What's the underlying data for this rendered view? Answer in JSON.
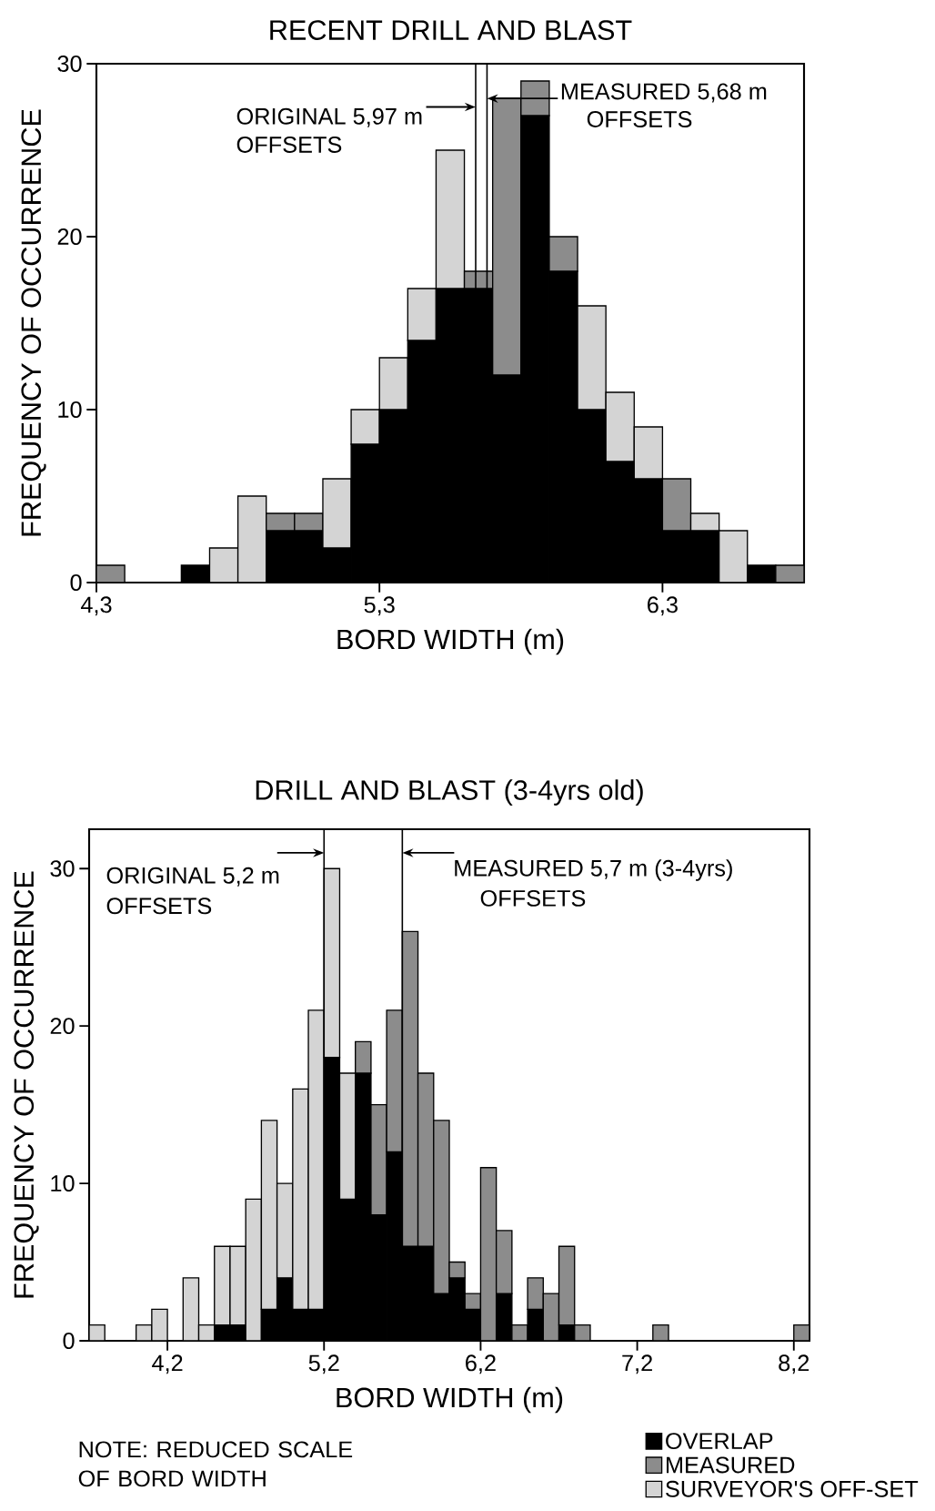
{
  "chart_data": [
    {
      "type": "bar",
      "title": "RECENT DRILL AND BLAST",
      "xlabel": "BORD WIDTH (m)",
      "ylabel": "FREQUENCY OF OCCURRENCE",
      "stacked": true,
      "x": [
        4.35,
        4.65,
        4.75,
        4.85,
        4.95,
        5.05,
        5.15,
        5.25,
        5.35,
        5.45,
        5.55,
        5.65,
        5.75,
        5.85,
        5.95,
        6.05,
        6.15,
        6.25,
        6.35,
        6.45,
        6.55,
        6.65,
        6.75
      ],
      "series": [
        {
          "color": "#000000",
          "values": [
            null,
            1,
            null,
            null,
            3,
            3,
            2,
            8,
            10,
            14,
            17,
            17,
            12,
            27,
            18,
            10,
            7,
            6,
            3,
            3,
            null,
            1,
            null
          ]
        },
        {
          "color": "#8c8c8c",
          "values": [
            1,
            null,
            null,
            null,
            1,
            1,
            null,
            null,
            null,
            null,
            null,
            1,
            16,
            2,
            2,
            null,
            null,
            null,
            3,
            null,
            null,
            null,
            1
          ]
        },
        {
          "color": "#d4d4d4",
          "values": [
            null,
            null,
            2,
            5,
            null,
            null,
            4,
            2,
            3,
            3,
            8,
            null,
            null,
            null,
            null,
            6,
            4,
            3,
            null,
            1,
            3,
            null,
            null
          ]
        }
      ],
      "xlim": [
        4.3,
        6.8
      ],
      "ylim": [
        0,
        30
      ],
      "xticks": [
        {
          "value": 4.3,
          "label": "4,3"
        },
        {
          "value": 5.3,
          "label": "5,3"
        },
        {
          "value": 6.3,
          "label": "6,3"
        }
      ],
      "yticks": [
        0,
        10,
        20,
        30
      ],
      "ref_lines": [
        {
          "axis": "x",
          "value": 5.64,
          "color": "#000000"
        },
        {
          "axis": "x",
          "value": 5.68,
          "color": "#000000"
        }
      ],
      "annotations": [
        {
          "text": "ORIGINAL 5,97 m",
          "x": 5.64,
          "y": 27.5
        },
        "OFFSETS",
        "MEASURED 5,68 m",
        "OFFSETS"
      ]
    },
    {
      "type": "bar",
      "title": "DRILL AND BLAST (3-4yrs old)",
      "xlabel": "BORD WIDTH (m)",
      "ylabel": "FREQUENCY OF OCCURRENCE",
      "stacked": true,
      "x": [
        3.75,
        4.05,
        4.15,
        4.35,
        4.45,
        4.55,
        4.65,
        4.75,
        4.85,
        4.95,
        5.05,
        5.15,
        5.25,
        5.35,
        5.45,
        5.55,
        5.65,
        5.75,
        5.85,
        5.95,
        6.05,
        6.15,
        6.25,
        6.35,
        6.45,
        6.55,
        6.65,
        6.75,
        6.85,
        7.35,
        8.25
      ],
      "series": [
        {
          "name": "OVERLAP",
          "color": "#000000",
          "values": [
            null,
            null,
            null,
            null,
            null,
            1,
            1,
            null,
            2,
            4,
            2,
            2,
            18,
            9,
            17,
            8,
            12,
            6,
            6,
            3,
            4,
            2,
            null,
            3,
            null,
            2,
            null,
            1,
            null,
            null,
            null
          ]
        },
        {
          "name": "MEASURED",
          "color": "#8c8c8c",
          "values": [
            null,
            null,
            null,
            null,
            null,
            null,
            null,
            null,
            null,
            null,
            null,
            null,
            null,
            null,
            2,
            7,
            9,
            20,
            11,
            11,
            1,
            1,
            11,
            4,
            1,
            2,
            3,
            5,
            1,
            1,
            1
          ]
        },
        {
          "name": "SURVEYOR'S OFF-SET",
          "color": "#d4d4d4",
          "values": [
            1,
            1,
            2,
            4,
            1,
            5,
            5,
            9,
            12,
            6,
            14,
            19,
            12,
            8,
            null,
            null,
            null,
            null,
            null,
            null,
            null,
            null,
            null,
            null,
            null,
            null,
            null,
            null,
            null,
            null,
            null
          ]
        }
      ],
      "xlim": [
        3.7,
        8.3
      ],
      "ylim": [
        0,
        32.5
      ],
      "xticks": [
        {
          "value": 4.2,
          "label": "4,2"
        },
        {
          "value": 5.2,
          "label": "5,2"
        },
        {
          "value": 6.2,
          "label": "6,2"
        },
        {
          "value": 7.2,
          "label": "7,2"
        },
        {
          "value": 8.2,
          "label": "8,2"
        }
      ],
      "yticks": [
        0,
        10,
        20,
        30
      ],
      "ref_lines": [
        {
          "axis": "x",
          "value": 5.2,
          "color": "#000000"
        },
        {
          "axis": "x",
          "value": 5.7,
          "color": "#000000"
        }
      ],
      "legend": "bottom right",
      "annotations": [
        {
          "text": "ORIGINAL 5,2 m",
          "x": 5.2,
          "y": 31
        },
        "OFFSETS",
        {
          "text": "MEASURED 5,7 m (3-4yrs)",
          "x": 5.7,
          "y": 31
        },
        "OFFSETS",
        "NOTE: REDUCED SCALE OF BORD WIDTH"
      ]
    }
  ]
}
